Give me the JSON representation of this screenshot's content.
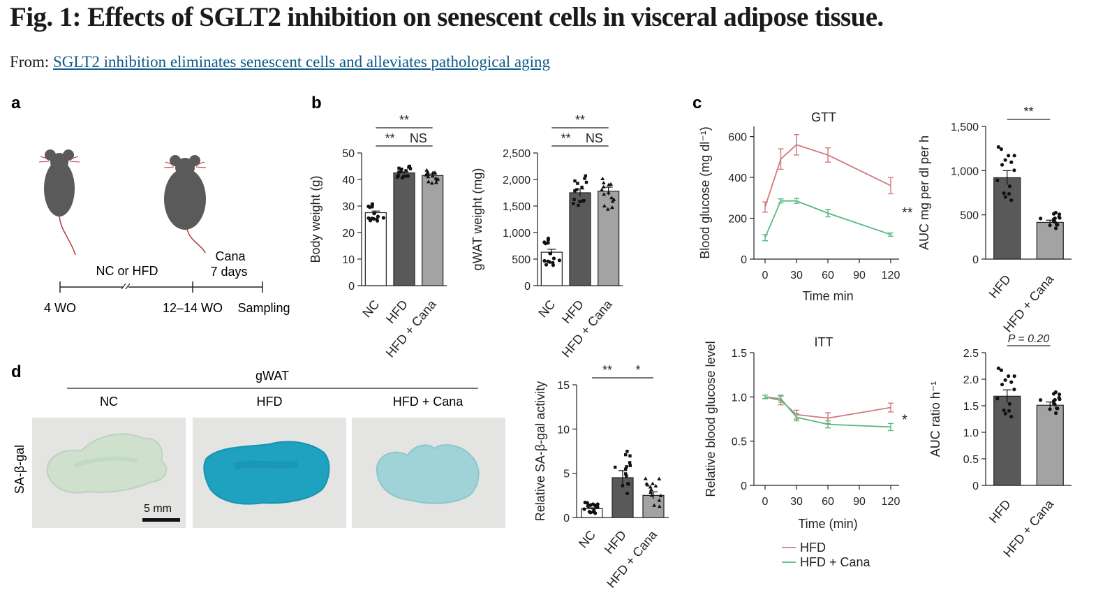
{
  "title": "Fig. 1: Effects of SGLT2 inhibition on senescent cells in visceral adipose tissue.",
  "source": {
    "prefix": "From:",
    "link_text": "SGLT2 inhibition eliminates senescent cells and alleviates pathological aging"
  },
  "panel_letters": {
    "a": "a",
    "b": "b",
    "c": "c",
    "d": "d"
  },
  "panel_a": {
    "label_nc_hfd": "NC or HFD",
    "label_cana": "Cana",
    "label_days": "7 days",
    "tick_4wo": "4 WO",
    "tick_12wo": "12–14 WO",
    "tick_sampling": "Sampling"
  },
  "panel_d": {
    "group_label": "gWAT",
    "row_label": "SA-β-gal",
    "col_labels": [
      "NC",
      "HFD",
      "HFD + Cana"
    ],
    "scale_bar": "5 mm"
  },
  "colors": {
    "nc_bar": "#ffffff",
    "hfd_bar": "#595959",
    "cana_bar": "#a3a3a3",
    "hfd_line": "#d2787a",
    "cana_line": "#58b982",
    "link": "#0e5a8a",
    "stain_light": "#c9dcc8",
    "stain_dark": "#1ea2c0"
  },
  "chart_data": [
    {
      "id": "b-body-weight",
      "type": "bar",
      "categories": [
        "NC",
        "HFD",
        "HFD + Cana"
      ],
      "values": [
        27.5,
        42.5,
        41.5
      ],
      "errors": [
        0.6,
        0.4,
        0.5
      ],
      "ylabel": "Body weight (g)",
      "ylim": [
        0,
        50
      ],
      "yticks": [
        0,
        10,
        20,
        30,
        40,
        50
      ],
      "ytick_labels": [
        "0",
        "10",
        "20",
        "30",
        "40",
        "50"
      ],
      "significance": [
        {
          "from": 0,
          "to": 1,
          "label": "**",
          "level": 1
        },
        {
          "from": 1,
          "to": 2,
          "label": "NS",
          "level": 1
        },
        {
          "from": 0,
          "to": 2,
          "label": "**",
          "level": 2
        }
      ]
    },
    {
      "id": "b-gwat-weight",
      "type": "bar",
      "categories": [
        "NC",
        "HFD",
        "HFD + Cana"
      ],
      "values": [
        630,
        1750,
        1780
      ],
      "errors": [
        55,
        70,
        75
      ],
      "ylabel": "gWAT weight (mg)",
      "ylim": [
        0,
        2500
      ],
      "yticks": [
        0,
        500,
        1000,
        1500,
        2000,
        2500
      ],
      "ytick_labels": [
        "0",
        "500",
        "1,000",
        "1,500",
        "2,000",
        "2,500"
      ],
      "significance": [
        {
          "from": 0,
          "to": 1,
          "label": "**",
          "level": 1
        },
        {
          "from": 1,
          "to": 2,
          "label": "NS",
          "level": 1
        },
        {
          "from": 0,
          "to": 2,
          "label": "**",
          "level": 2
        }
      ]
    },
    {
      "id": "c-gtt",
      "type": "line",
      "title": "GTT",
      "x": [
        0,
        15,
        30,
        60,
        120
      ],
      "series": [
        {
          "name": "HFD",
          "values": [
            255,
            490,
            560,
            510,
            360
          ],
          "errors": [
            25,
            50,
            50,
            35,
            40
          ]
        },
        {
          "name": "HFD + Cana",
          "values": [
            105,
            285,
            285,
            225,
            120
          ],
          "errors": [
            15,
            10,
            12,
            18,
            8
          ]
        }
      ],
      "xlabel": "Time min",
      "ylabel": "Blood glucose (mg dl⁻¹)",
      "xlim": [
        0,
        120
      ],
      "xticks": [
        0,
        30,
        60,
        90,
        120
      ],
      "ylim": [
        0,
        650
      ],
      "yticks": [
        0,
        200,
        400,
        600
      ],
      "annotation": "**"
    },
    {
      "id": "c-gtt-auc",
      "type": "bar",
      "categories": [
        "HFD",
        "HFD + Cana"
      ],
      "values": [
        920,
        415
      ],
      "errors": [
        80,
        25
      ],
      "ylabel": "AUC mg per dl per h",
      "ylim": [
        0,
        1500
      ],
      "yticks": [
        0,
        500,
        1000,
        1500
      ],
      "ytick_labels": [
        "0",
        "500",
        "1,000",
        "1,500"
      ],
      "significance": [
        {
          "from": 0,
          "to": 1,
          "label": "**",
          "level": 1
        }
      ]
    },
    {
      "id": "c-itt",
      "type": "line",
      "title": "ITT",
      "x": [
        0,
        15,
        30,
        60,
        120
      ],
      "series": [
        {
          "name": "HFD",
          "values": [
            1.0,
            0.96,
            0.8,
            0.76,
            0.88
          ],
          "errors": [
            0.02,
            0.05,
            0.05,
            0.06,
            0.05
          ]
        },
        {
          "name": "HFD + Cana",
          "values": [
            1.0,
            0.98,
            0.77,
            0.69,
            0.66
          ],
          "errors": [
            0.02,
            0.04,
            0.04,
            0.04,
            0.04
          ]
        }
      ],
      "xlabel": "Time (min)",
      "ylabel": "Relative blood glucose level",
      "xlim": [
        0,
        120
      ],
      "xticks": [
        0,
        30,
        60,
        90,
        120
      ],
      "ylim": [
        0,
        1.5
      ],
      "yticks": [
        0,
        0.5,
        1.0,
        1.5
      ],
      "ytick_labels": [
        "0",
        "0.5",
        "1.0",
        "1.5"
      ],
      "annotation": "*",
      "legend": "bottom"
    },
    {
      "id": "c-itt-auc",
      "type": "bar",
      "categories": [
        "HFD",
        "HFD + Cana"
      ],
      "values": [
        1.68,
        1.51
      ],
      "errors": [
        0.12,
        0.06
      ],
      "ylabel": "AUC ratio h⁻¹",
      "ylim": [
        0,
        2.5
      ],
      "yticks": [
        0,
        0.5,
        1.0,
        1.5,
        2.0,
        2.5
      ],
      "ytick_labels": [
        "0",
        "0.5",
        "1.0",
        "1.5",
        "2.0",
        "2.5"
      ],
      "significance": [
        {
          "from": 0,
          "to": 1,
          "label": "P = 0.20",
          "level": 1
        }
      ]
    },
    {
      "id": "d-sa-bgal",
      "type": "bar",
      "categories": [
        "NC",
        "HFD",
        "HFD + Cana"
      ],
      "values": [
        1.0,
        4.5,
        2.5
      ],
      "errors": [
        0.1,
        0.8,
        0.4
      ],
      "ylabel": "Relative SA-β-gal activity",
      "ylim": [
        0,
        15
      ],
      "yticks": [
        0,
        5,
        10,
        15
      ],
      "ytick_labels": [
        "0",
        "5",
        "10",
        "15"
      ],
      "significance": [
        {
          "from": 0,
          "to": 1,
          "label": "**",
          "level": 1
        },
        {
          "from": 1,
          "to": 2,
          "label": "*",
          "level": 1
        }
      ]
    }
  ]
}
